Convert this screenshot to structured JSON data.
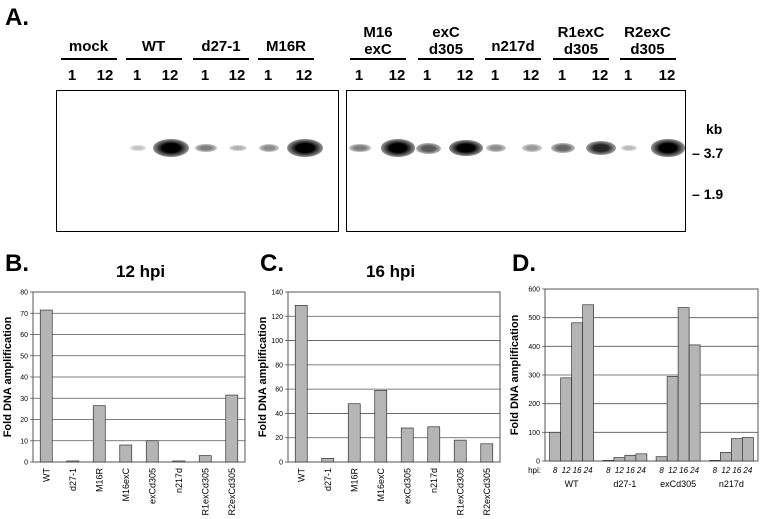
{
  "panel_a": {
    "letter": "A.",
    "blot1_groups": [
      {
        "lines": [
          "mock"
        ],
        "times": [
          "1",
          "12"
        ],
        "intensity": [
          0.0,
          0.0
        ]
      },
      {
        "lines": [
          "WT"
        ],
        "times": [
          "1",
          "12"
        ],
        "intensity": [
          0.08,
          1.0
        ]
      },
      {
        "lines": [
          "d27-1"
        ],
        "times": [
          "1",
          "12"
        ],
        "intensity": [
          0.35,
          0.15
        ]
      },
      {
        "lines": [
          "M16R"
        ],
        "times": [
          "1",
          "12"
        ],
        "intensity": [
          0.3,
          1.0
        ]
      }
    ],
    "blot2_groups": [
      {
        "lines": [
          "M16",
          "exC"
        ],
        "times": [
          "1",
          "12"
        ],
        "intensity": [
          0.35,
          0.95
        ]
      },
      {
        "lines": [
          "exC",
          "d305"
        ],
        "times": [
          "1",
          "12"
        ],
        "intensity": [
          0.5,
          0.9
        ]
      },
      {
        "lines": [
          "n217d"
        ],
        "times": [
          "1",
          "12"
        ],
        "intensity": [
          0.3,
          0.25
        ]
      },
      {
        "lines": [
          "R1exC",
          "d305"
        ],
        "times": [
          "1",
          "12"
        ],
        "intensity": [
          0.45,
          0.7
        ]
      },
      {
        "lines": [
          "R2exC",
          "d305"
        ],
        "times": [
          "1",
          "12"
        ],
        "intensity": [
          0.12,
          0.95
        ]
      }
    ],
    "markers": {
      "unit": "kb",
      "labels": [
        "3.7",
        "1.9"
      ]
    }
  },
  "chart_data": [
    {
      "panel": "B.",
      "type": "bar",
      "title": "12 hpi",
      "ylabel": "Fold DNA amplification",
      "ylim": [
        0,
        80
      ],
      "yticks": [
        "0",
        "10",
        "20",
        "30",
        "40",
        "50",
        "60",
        "70",
        "80"
      ],
      "categories": [
        "WT",
        "d27-1",
        "M16R",
        "M16exC",
        "exCd305",
        "n217d",
        "R1exCd305",
        "R2exCd305"
      ],
      "values": [
        71.5,
        0.5,
        26.5,
        8,
        10,
        0.5,
        3,
        31.5
      ],
      "grid": true
    },
    {
      "panel": "C.",
      "type": "bar",
      "title": "16 hpi",
      "ylabel": "Fold DNA amplification",
      "ylim": [
        0,
        140
      ],
      "yticks": [
        "0",
        "20",
        "40",
        "60",
        "80",
        "100",
        "120",
        "140"
      ],
      "categories": [
        "WT",
        "d27-1",
        "M16R",
        "M16exC",
        "exCd305",
        "n217d",
        "R1exCd305",
        "R2exCd305"
      ],
      "values": [
        129,
        3,
        48,
        59,
        28,
        29,
        18,
        15
      ],
      "grid": true
    },
    {
      "panel": "D.",
      "type": "bar",
      "title": "",
      "ylabel": "Fold DNA amplification",
      "ylim": [
        0,
        600
      ],
      "yticks": [
        "0",
        "100",
        "200",
        "300",
        "400",
        "500",
        "600"
      ],
      "hpi_label": "hpi:",
      "groups": [
        {
          "name": "WT",
          "x": [
            "8",
            "12",
            "16",
            "24"
          ],
          "values": [
            100,
            290,
            482,
            545
          ]
        },
        {
          "name": "d27-1",
          "x": [
            "8",
            "12",
            "16",
            "24"
          ],
          "values": [
            2,
            12,
            20,
            25
          ]
        },
        {
          "name": "exCd305",
          "x": [
            "8",
            "12",
            "16",
            "24"
          ],
          "values": [
            15,
            295,
            535,
            405
          ]
        },
        {
          "name": "n217d",
          "x": [
            "8",
            "12",
            "16",
            "24"
          ],
          "values": [
            2,
            30,
            78,
            82
          ]
        }
      ],
      "grid": true
    }
  ]
}
